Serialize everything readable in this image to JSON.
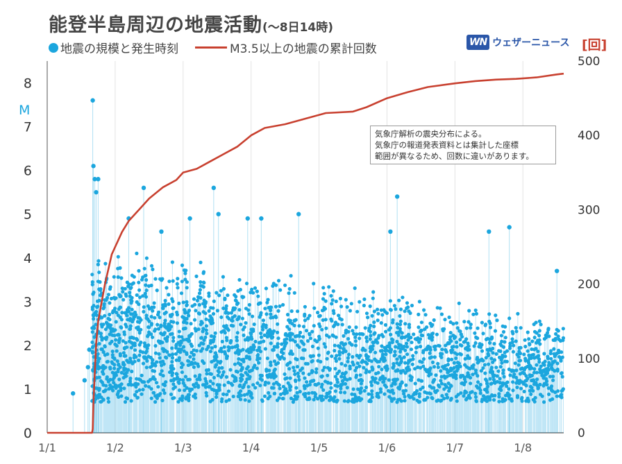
{
  "title": "能登半島周辺の地震活動",
  "subtitle": "(〜8日14時)",
  "legend": {
    "points": "地震の規模と発生時刻",
    "line": "M3.5以上の地震の累計回数"
  },
  "brand": {
    "mark": "WN",
    "name": "ウェザーニュース"
  },
  "note": [
    "気象庁解析の震央分布による。",
    "気象庁の報道発表資料とは集計した座標",
    "範囲が異なるため、回数に違いがあります。"
  ],
  "colors": {
    "points": "#1ba6de",
    "line": "#c8402f",
    "grid": "#e3e3e3",
    "axis": "#555555"
  },
  "chart_data": {
    "type": "scatter",
    "x_tick_labels": [
      "1/1",
      "1/2",
      "1/3",
      "1/4",
      "1/5",
      "1/6",
      "1/7",
      "1/8"
    ],
    "xlim": [
      0,
      7.6
    ],
    "left_axis": {
      "label": "M",
      "ticks": [
        "0",
        "1",
        "2",
        "3",
        "4",
        "5",
        "6",
        "7",
        "8"
      ],
      "range": [
        0,
        8.5
      ]
    },
    "right_axis": {
      "label": "[回]",
      "ticks": [
        "0",
        "100",
        "200",
        "300",
        "400",
        "500"
      ],
      "range": [
        0,
        500
      ]
    },
    "series": [
      {
        "name": "地震の規模と発生時刻",
        "kind": "magnitude-points",
        "notable_points": [
          {
            "x": 0.38,
            "y": 0.9
          },
          {
            "x": 0.55,
            "y": 1.2
          },
          {
            "x": 0.6,
            "y": 1.5
          },
          {
            "x": 0.62,
            "y": 1.9
          },
          {
            "x": 0.67,
            "y": 7.6
          },
          {
            "x": 0.68,
            "y": 6.1
          },
          {
            "x": 0.7,
            "y": 5.8
          },
          {
            "x": 0.75,
            "y": 5.8
          },
          {
            "x": 0.72,
            "y": 5.5
          },
          {
            "x": 1.2,
            "y": 4.9
          },
          {
            "x": 1.42,
            "y": 5.6
          },
          {
            "x": 1.68,
            "y": 4.6
          },
          {
            "x": 2.1,
            "y": 4.9
          },
          {
            "x": 2.45,
            "y": 5.6
          },
          {
            "x": 2.52,
            "y": 5.0
          },
          {
            "x": 2.95,
            "y": 4.9
          },
          {
            "x": 3.15,
            "y": 4.9
          },
          {
            "x": 3.7,
            "y": 5.0
          },
          {
            "x": 5.15,
            "y": 5.4
          },
          {
            "x": 5.05,
            "y": 4.6
          },
          {
            "x": 6.5,
            "y": 4.6
          },
          {
            "x": 6.8,
            "y": 4.7
          },
          {
            "x": 7.5,
            "y": 3.7
          }
        ]
      },
      {
        "name": "M3.5以上の地震の累計回数",
        "kind": "cumulative-line",
        "axis": "right",
        "x": [
          0,
          0.66,
          0.67,
          0.68,
          0.7,
          0.72,
          0.75,
          0.8,
          0.85,
          0.9,
          0.95,
          1.0,
          1.1,
          1.2,
          1.3,
          1.4,
          1.5,
          1.7,
          1.9,
          2.0,
          2.2,
          2.4,
          2.6,
          2.8,
          3.0,
          3.2,
          3.5,
          3.7,
          3.9,
          4.1,
          4.5,
          4.7,
          5.0,
          5.3,
          5.6,
          6.0,
          6.3,
          6.6,
          6.9,
          7.2,
          7.5,
          7.6
        ],
        "y": [
          0,
          0,
          5,
          40,
          80,
          120,
          150,
          175,
          200,
          220,
          240,
          250,
          270,
          285,
          295,
          305,
          315,
          330,
          340,
          350,
          355,
          365,
          375,
          385,
          400,
          410,
          415,
          420,
          425,
          430,
          432,
          438,
          450,
          458,
          465,
          470,
          473,
          475,
          476,
          478,
          482,
          483
        ]
      }
    ]
  }
}
